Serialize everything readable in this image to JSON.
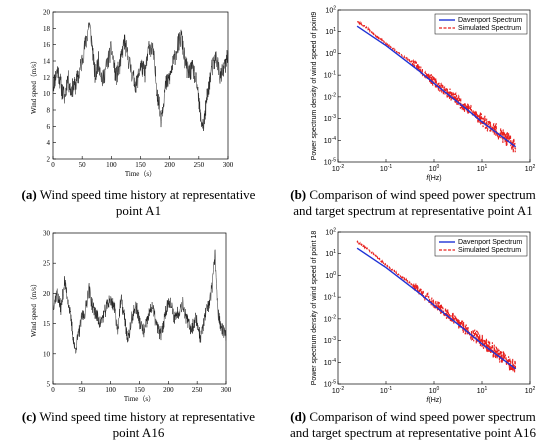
{
  "chart_data": [
    {
      "type": "line",
      "panel": "a",
      "xlabel": "Time（s）",
      "ylabel": "Wind speed（m/s）",
      "xlim": [
        0,
        300
      ],
      "ylim": [
        2,
        20
      ],
      "x_ticks": [
        "0",
        "50",
        "100",
        "150",
        "200",
        "250",
        "300"
      ],
      "y_ticks": [
        "2",
        "4",
        "6",
        "8",
        "10",
        "12",
        "14",
        "16",
        "18",
        "20"
      ],
      "series": [
        {
          "x": [
            0,
            8,
            15,
            20,
            25,
            30,
            38,
            45,
            52,
            57,
            62,
            67,
            72,
            78,
            85,
            92,
            100,
            108,
            115,
            122,
            130,
            137,
            143,
            150,
            158,
            165,
            172,
            178,
            185,
            193,
            200,
            207,
            214,
            220,
            226,
            232,
            240,
            247,
            253,
            258,
            265,
            272,
            280,
            287,
            293,
            300
          ],
          "values": [
            11,
            13,
            10.5,
            9.5,
            12,
            10.5,
            11,
            12.5,
            15,
            16.5,
            18.8,
            16,
            12,
            14,
            11.5,
            13.5,
            15.5,
            12,
            13.5,
            16.5,
            14,
            12,
            11,
            13.5,
            12.5,
            16,
            15,
            10.5,
            7,
            11,
            12,
            14,
            16,
            17,
            14,
            12.5,
            13,
            11,
            7,
            6,
            10,
            13,
            14.5,
            12,
            13,
            14.5
          ]
        }
      ]
    },
    {
      "type": "line",
      "panel": "b",
      "xlabel": "f(Hz)",
      "ylabel": "Power spectrum density of wind speed of point9",
      "x_scale": "log",
      "y_scale": "log",
      "xlim": [
        0.01,
        100
      ],
      "ylim": [
        1e-05,
        100
      ],
      "x_ticks": [
        "10-2",
        "10-1",
        "100",
        "101",
        "102"
      ],
      "y_ticks": [
        "10-5",
        "10-4",
        "10-3",
        "10-2",
        "10-1",
        "100",
        "101",
        "102"
      ],
      "series": [
        {
          "name": "Davenport Spectrum",
          "color": "#1f33d6",
          "x": [
            0.025,
            0.1,
            0.5,
            1,
            5,
            10,
            50
          ],
          "values": [
            18,
            2.3,
            0.15,
            0.042,
            0.0025,
            0.0007,
            5e-05
          ]
        },
        {
          "name": "Simulated Spectrum",
          "color": "#e8201e",
          "x": [
            0.025,
            0.04,
            0.06,
            0.1,
            0.2,
            0.35,
            0.5,
            1,
            2,
            5,
            10,
            20,
            50
          ],
          "values": [
            30,
            15,
            7,
            2.8,
            0.9,
            0.4,
            0.2,
            0.05,
            0.015,
            0.003,
            0.0009,
            0.00028,
            5e-05
          ]
        }
      ]
    },
    {
      "type": "line",
      "panel": "c",
      "xlabel": "Time（s）",
      "ylabel": "Wind speed（m/s）",
      "xlim": [
        0,
        300
      ],
      "ylim": [
        5,
        30
      ],
      "x_ticks": [
        "0",
        "50",
        "100",
        "150",
        "200",
        "250",
        "300"
      ],
      "y_ticks": [
        "5",
        "10",
        "15",
        "20",
        "25",
        "30"
      ],
      "series": [
        {
          "x": [
            0,
            7,
            14,
            20,
            26,
            32,
            38,
            44,
            50,
            56,
            62,
            68,
            75,
            82,
            90,
            98,
            106,
            112,
            118,
            124,
            130,
            137,
            144,
            151,
            158,
            165,
            172,
            180,
            188,
            195,
            202,
            210,
            218,
            225,
            232,
            240,
            248,
            256,
            263,
            270,
            276,
            281,
            286,
            291,
            296,
            300
          ],
          "values": [
            18,
            20,
            17.5,
            22,
            19,
            15,
            10.5,
            13,
            16,
            17,
            21,
            18,
            16.5,
            15,
            17,
            19,
            18,
            14,
            19,
            16,
            12,
            16,
            18,
            15,
            13.5,
            16,
            18,
            14.5,
            13,
            17,
            19,
            16,
            17,
            18.5,
            15.5,
            14,
            16,
            12.5,
            16,
            18,
            21,
            26.5,
            17,
            14.5,
            13.5,
            13
          ]
        }
      ]
    },
    {
      "type": "line",
      "panel": "d",
      "xlabel": "f(Hz)",
      "ylabel": "Power spectrum density of wind speed of point 18",
      "x_scale": "log",
      "y_scale": "log",
      "xlim": [
        0.01,
        100
      ],
      "ylim": [
        1e-05,
        100
      ],
      "x_ticks": [
        "10-2",
        "10-1",
        "100",
        "101",
        "102"
      ],
      "y_ticks": [
        "10-5",
        "10-4",
        "10-3",
        "10-2",
        "10-1",
        "100",
        "101",
        "102"
      ],
      "series": [
        {
          "name": "Davenport Spectrum",
          "color": "#1f33d6",
          "x": [
            0.025,
            0.1,
            0.5,
            1,
            5,
            10,
            50
          ],
          "values": [
            18,
            2.3,
            0.15,
            0.042,
            0.0025,
            0.0007,
            5e-05
          ]
        },
        {
          "name": "Simulated Spectrum",
          "color": "#e8201e",
          "x": [
            0.025,
            0.04,
            0.06,
            0.1,
            0.2,
            0.35,
            0.5,
            1,
            2,
            5,
            10,
            20,
            50
          ],
          "values": [
            35,
            17,
            8,
            3,
            0.95,
            0.38,
            0.2,
            0.05,
            0.015,
            0.003,
            0.0009,
            0.00028,
            5e-05
          ]
        }
      ]
    }
  ],
  "captions": {
    "a": {
      "label": "(a)",
      "line1": " Wind speed time history at representative",
      "line2": "point A1"
    },
    "b": {
      "label": "(b)",
      "line1": " Comparison of wind speed power spectrum",
      "line2": "and target spectrum at representative point A1"
    },
    "c": {
      "label": "(c)",
      "line1": " Wind speed time history at representative",
      "line2": "point A16"
    },
    "d": {
      "label": "(d)",
      "line1": " Comparison of wind speed power spectrum",
      "line2": "and target spectrum at representative point A16"
    }
  }
}
